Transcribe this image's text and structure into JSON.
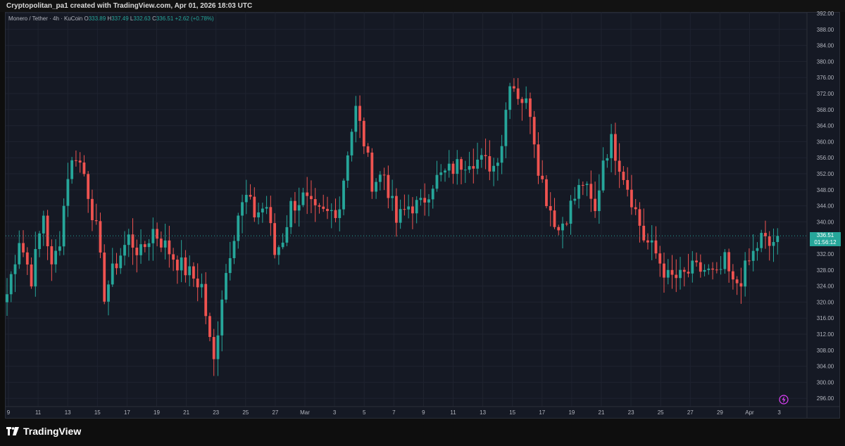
{
  "header": {
    "title": "Cryptopolitan_pa1 created with TradingView.com, Apr 01, 2026 18:03 UTC"
  },
  "legend": {
    "symbol": "Monero / Tether · 4h · KuCoin",
    "o_label": "O",
    "o_value": "333.89",
    "h_label": "H",
    "h_value": "337.49",
    "l_label": "L",
    "l_value": "332.63",
    "c_label": "C",
    "c_value": "336.51",
    "change": "+2.62 (+0.78%)"
  },
  "current_price": {
    "value": "336.51",
    "countdown": "01:56:12"
  },
  "footer": {
    "brand": "TradingView"
  },
  "colors": {
    "background": "#151924",
    "up": "#26a69a",
    "down": "#ef5350",
    "grid": "#1f2330",
    "text": "#b2b5be",
    "alert": "#e040fb"
  },
  "icons": {
    "alert": "lightning-icon",
    "logo": "tradingview-logo-icon"
  },
  "chart_data": {
    "type": "candlestick",
    "title": "Monero / Tether · 4h · KuCoin",
    "ylim": [
      294,
      393
    ],
    "y_ticks": [
      "392.00",
      "388.00",
      "384.00",
      "380.00",
      "376.00",
      "372.00",
      "368.00",
      "364.00",
      "360.00",
      "356.00",
      "352.00",
      "348.00",
      "344.00",
      "340.00",
      "336.00",
      "332.00",
      "328.00",
      "324.00",
      "320.00",
      "316.00",
      "312.00",
      "308.00",
      "304.00",
      "300.00",
      "296.00"
    ],
    "x_ticks": [
      "9",
      "11",
      "13",
      "15",
      "17",
      "19",
      "21",
      "23",
      "25",
      "27",
      "Mar",
      "3",
      "5",
      "7",
      "9",
      "11",
      "13",
      "15",
      "17",
      "19",
      "21",
      "23",
      "25",
      "27",
      "29",
      "Apr",
      "3"
    ],
    "grid": true,
    "last_close": 336.51,
    "waypoints": [
      [
        0,
        322
      ],
      [
        3,
        336
      ],
      [
        6,
        326
      ],
      [
        9,
        342
      ],
      [
        11,
        328
      ],
      [
        13,
        336
      ],
      [
        15,
        352
      ],
      [
        17,
        357
      ],
      [
        19,
        352
      ],
      [
        22,
        338
      ],
      [
        24,
        322
      ],
      [
        27,
        330
      ],
      [
        30,
        336
      ],
      [
        33,
        332
      ],
      [
        36,
        338
      ],
      [
        39,
        334
      ],
      [
        42,
        330
      ],
      [
        45,
        327
      ],
      [
        48,
        324
      ],
      [
        50,
        310
      ],
      [
        51,
        305
      ],
      [
        53,
        322
      ],
      [
        55,
        333
      ],
      [
        57,
        342
      ],
      [
        59,
        346
      ],
      [
        61,
        342
      ],
      [
        64,
        344
      ],
      [
        66,
        332
      ],
      [
        68,
        336
      ],
      [
        70,
        344
      ],
      [
        73,
        346
      ],
      [
        76,
        342
      ],
      [
        79,
        342
      ],
      [
        82,
        344
      ],
      [
        84,
        358
      ],
      [
        86,
        368
      ],
      [
        88,
        360
      ],
      [
        90,
        350
      ],
      [
        93,
        352
      ],
      [
        96,
        340
      ],
      [
        99,
        344
      ],
      [
        102,
        344
      ],
      [
        105,
        350
      ],
      [
        108,
        352
      ],
      [
        111,
        354
      ],
      [
        114,
        356
      ],
      [
        117,
        355
      ],
      [
        120,
        354
      ],
      [
        122,
        360
      ],
      [
        124,
        376
      ],
      [
        126,
        372
      ],
      [
        129,
        368
      ],
      [
        131,
        354
      ],
      [
        133,
        346
      ],
      [
        136,
        338
      ],
      [
        139,
        344
      ],
      [
        142,
        350
      ],
      [
        145,
        342
      ],
      [
        147,
        356
      ],
      [
        149,
        360
      ],
      [
        152,
        352
      ],
      [
        154,
        346
      ],
      [
        157,
        336
      ],
      [
        160,
        332
      ],
      [
        163,
        326
      ],
      [
        166,
        326
      ],
      [
        169,
        328
      ],
      [
        172,
        328
      ],
      [
        175,
        326
      ],
      [
        177,
        330
      ],
      [
        179,
        324
      ],
      [
        181,
        326
      ],
      [
        184,
        332
      ],
      [
        186,
        336
      ],
      [
        188,
        334
      ],
      [
        190,
        336.51
      ]
    ]
  }
}
